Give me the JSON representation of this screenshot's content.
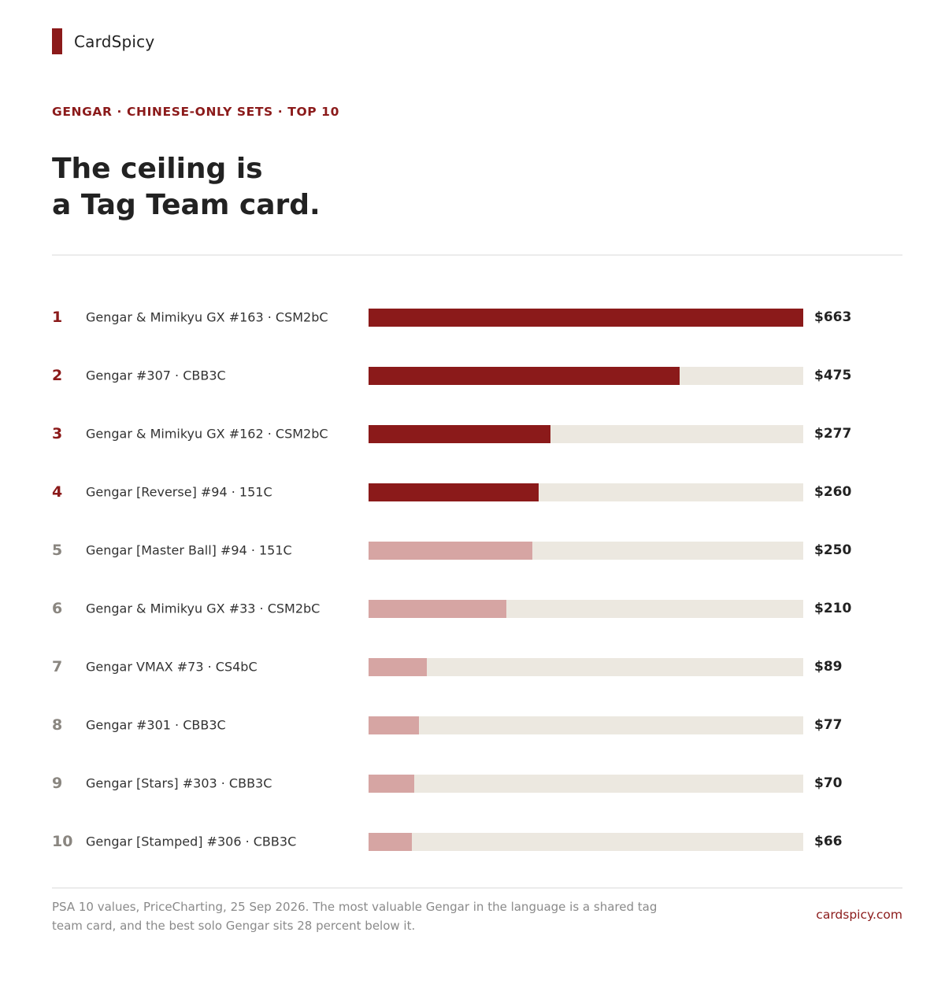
{
  "brand": {
    "name": "CardSpicy"
  },
  "kicker": "GENGAR · CHINESE-ONLY SETS · TOP 10",
  "headline": {
    "line1": "The ceiling is",
    "line2": "a Tag Team card."
  },
  "colors": {
    "accent": "#8b1a1a",
    "accent_muted": "#d6a5a3",
    "rank_muted": "#8a8680",
    "track": "#ece8e0"
  },
  "chart_data": {
    "type": "bar",
    "orientation": "horizontal",
    "value_prefix": "$",
    "xlim": [
      0,
      663
    ],
    "highlighted_count": 4,
    "ranks": [
      "1",
      "2",
      "3",
      "4",
      "5",
      "6",
      "7",
      "8",
      "9",
      "10"
    ],
    "categories": [
      "Gengar & Mimikyu GX #163 · CSM2bC",
      "Gengar #307 · CBB3C",
      "Gengar & Mimikyu GX #162 · CSM2bC",
      "Gengar [Reverse] #94 · 151C",
      "Gengar [Master Ball] #94 · 151C",
      "Gengar & Mimikyu GX #33 · CSM2bC",
      "Gengar VMAX #73 · CS4bC",
      "Gengar #301 · CBB3C",
      "Gengar [Stars] #303 · CBB3C",
      "Gengar [Stamped] #306 · CBB3C"
    ],
    "values": [
      663,
      475,
      277,
      260,
      250,
      210,
      89,
      77,
      70,
      66
    ],
    "value_labels": [
      "$663",
      "$475",
      "$277",
      "$260",
      "$250",
      "$210",
      "$89",
      "$77",
      "$70",
      "$66"
    ]
  },
  "footnote": "PSA 10 values, PriceCharting, 25 Sep 2026. The most valuable Gengar in the language is a shared tag team card, and the best solo Gengar sits 28 percent below it.",
  "site": "cardspicy.com"
}
